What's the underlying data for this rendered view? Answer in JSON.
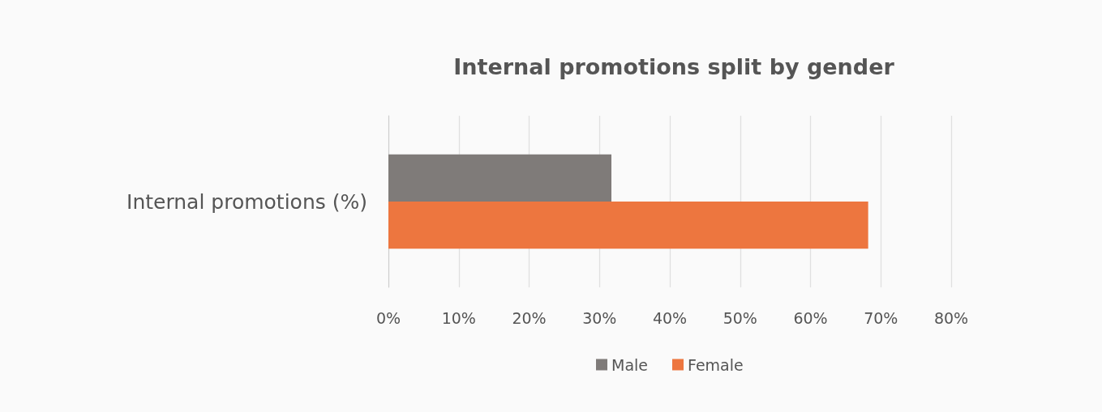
{
  "chart_data": {
    "type": "bar",
    "orientation": "horizontal",
    "title": "Internal promotions split by gender",
    "categories": [
      "Internal promotions (%)"
    ],
    "series": [
      {
        "name": "Male",
        "color": "#7f7b79",
        "values": [
          31.7
        ]
      },
      {
        "name": "Female",
        "color": "#ed763f",
        "values": [
          68.2
        ]
      }
    ],
    "xlim": [
      0,
      80
    ],
    "xticks": [
      {
        "value": 0,
        "label": "0%"
      },
      {
        "value": 10,
        "label": "10%"
      },
      {
        "value": 20,
        "label": "20%"
      },
      {
        "value": 30,
        "label": "30%"
      },
      {
        "value": 40,
        "label": "40%"
      },
      {
        "value": 50,
        "label": "50%"
      },
      {
        "value": 60,
        "label": "60%"
      },
      {
        "value": 70,
        "label": "70%"
      },
      {
        "value": 80,
        "label": "80%"
      }
    ],
    "grid": "x",
    "legend": "bottom"
  }
}
